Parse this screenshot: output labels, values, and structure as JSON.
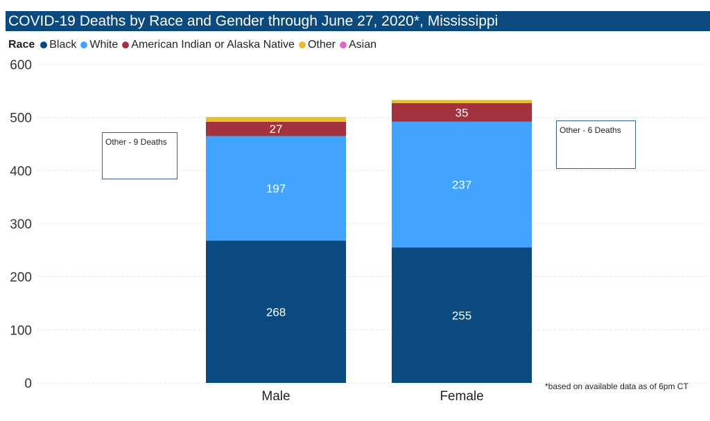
{
  "title": "COVID-19 Deaths by Race and Gender through June 27, 2020*, Mississippi",
  "legend": {
    "title": "Race",
    "items": [
      {
        "label": "Black",
        "color": "#0a4a7f"
      },
      {
        "label": "White",
        "color": "#42a4ff"
      },
      {
        "label": "American Indian or Alaska Native",
        "color": "#a3323f"
      },
      {
        "label": "Other",
        "color": "#e6be2e"
      },
      {
        "label": "Asian",
        "color": "#e066c8"
      }
    ]
  },
  "notes": {
    "male": "Other - 9 Deaths",
    "female": "Other - 6 Deaths"
  },
  "footnote": "*based on available data as of 6pm CT",
  "chart_data": {
    "type": "bar",
    "stacked": true,
    "categories": [
      "Male",
      "Female"
    ],
    "series": [
      {
        "name": "Black",
        "color": "#0a4a7f",
        "values": [
          268,
          255
        ]
      },
      {
        "name": "White",
        "color": "#42a4ff",
        "values": [
          197,
          237
        ]
      },
      {
        "name": "American Indian or Alaska Native",
        "color": "#a3323f",
        "values": [
          27,
          35
        ]
      },
      {
        "name": "Other",
        "color": "#e6be2e",
        "values": [
          9,
          6
        ]
      },
      {
        "name": "Asian",
        "color": "#e066c8",
        "values": [
          0,
          0
        ]
      }
    ],
    "data_labels": [
      [
        268,
        255
      ],
      [
        197,
        237
      ],
      [
        27,
        35
      ],
      [
        null,
        null
      ],
      [
        null,
        null
      ]
    ],
    "ylim": [
      0,
      600
    ],
    "yticks": [
      0,
      100,
      200,
      300,
      400,
      500,
      600
    ],
    "grid": true,
    "legend_position": "top-left"
  }
}
